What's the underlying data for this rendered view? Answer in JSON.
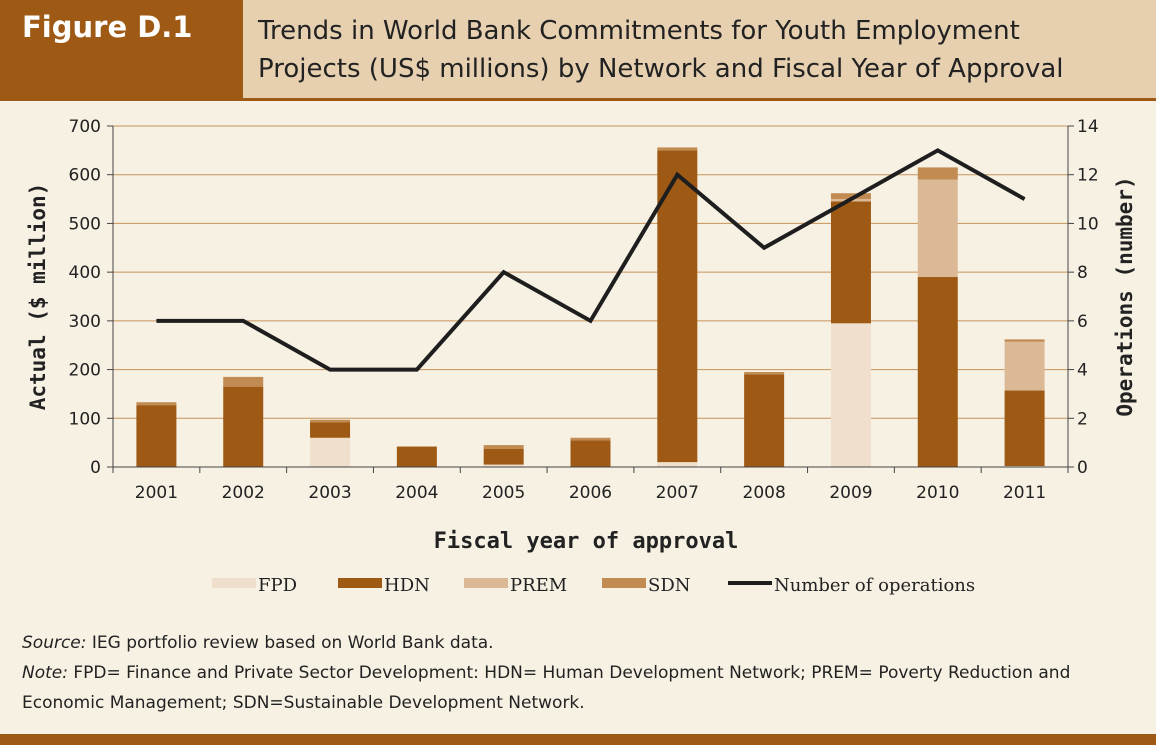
{
  "header": {
    "tag": "Figure D.1",
    "title_line1": "Trends in World Bank Commitments for Youth Employment",
    "title_line2": "Projects (US$ millions) by Network and Fiscal Year of Approval"
  },
  "colors": {
    "header_bg": "#e6d0b0",
    "tag_bg": "#9e5a14",
    "page_bg": "#f7f1e4",
    "FPD": "#f0dfcc",
    "HDN": "#9e5a14",
    "PREM": "#dcb996",
    "SDN": "#c18b52",
    "line": "#1e1e1e"
  },
  "chart_data": {
    "type": "bar",
    "stacked": true,
    "categories": [
      "2001",
      "2002",
      "2003",
      "2004",
      "2005",
      "2006",
      "2007",
      "2008",
      "2009",
      "2010",
      "2011"
    ],
    "series": [
      {
        "name": "FPD",
        "values": [
          0,
          0,
          60,
          0,
          5,
          0,
          10,
          0,
          295,
          0,
          2
        ]
      },
      {
        "name": "HDN",
        "values": [
          127,
          165,
          32,
          42,
          32,
          55,
          640,
          190,
          250,
          390,
          155
        ]
      },
      {
        "name": "PREM",
        "values": [
          0,
          0,
          0,
          0,
          0,
          0,
          0,
          0,
          5,
          200,
          100
        ]
      },
      {
        "name": "SDN",
        "values": [
          6,
          20,
          5,
          0,
          8,
          5,
          6,
          5,
          12,
          25,
          5
        ]
      }
    ],
    "line_series": {
      "name": "Number of operations",
      "values": [
        6,
        6,
        4,
        4,
        8,
        6,
        12,
        9,
        11,
        13,
        11
      ]
    },
    "ylim": [
      0,
      700
    ],
    "y_ticks": [
      "0",
      "100",
      "200",
      "300",
      "400",
      "500",
      "600",
      "700"
    ],
    "y2lim": [
      0,
      14
    ],
    "y2_ticks": [
      "0",
      "2",
      "4",
      "6",
      "8",
      "10",
      "12",
      "14"
    ],
    "ylabel": "Actual ($ million)",
    "y2label": "Operations (number)",
    "xlabel": "Fiscal year of approval",
    "grid": true,
    "legend_position": "bottom"
  },
  "notes": {
    "source_label": "Source:",
    "source_text": " IEG portfolio review based on World Bank data.",
    "note_label": "Note:",
    "note_text": " FPD= Finance and Private Sector Development: HDN= Human Development Network; PREM= Poverty Reduction and Economic Management; SDN=Sustainable Development Network."
  }
}
